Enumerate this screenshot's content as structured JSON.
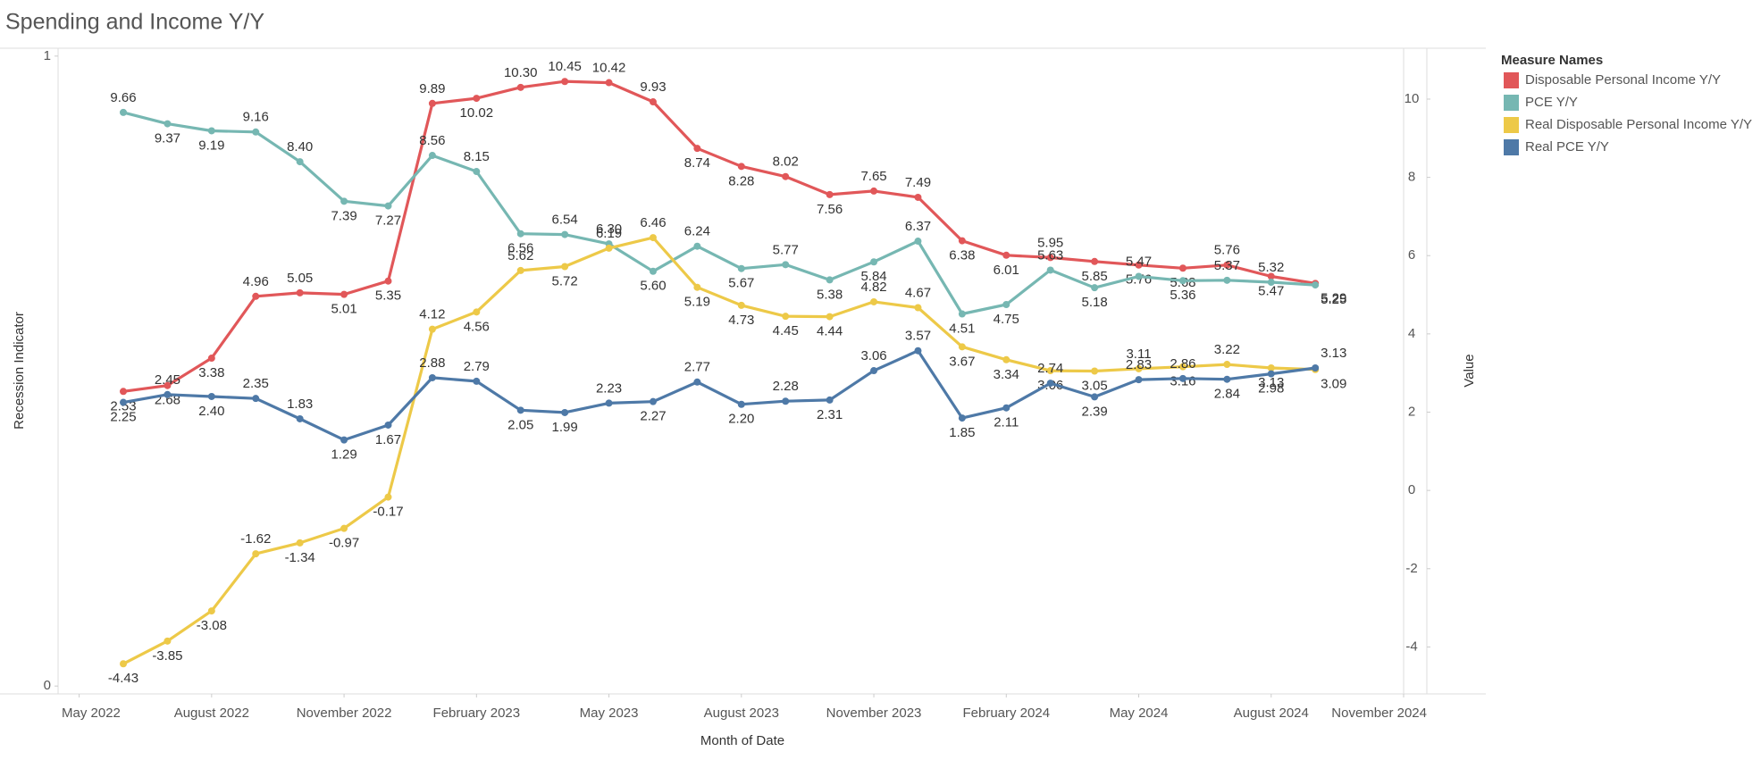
{
  "chart_data": {
    "type": "line",
    "title": "Spending and Income Y/Y",
    "xlabel": "Month of Date",
    "ylabel": "Recession Indicator",
    "y2label": "Value",
    "legend_title": "Measure Names",
    "legend": "right",
    "x": [
      "2022-06",
      "2022-07",
      "2022-08",
      "2022-09",
      "2022-10",
      "2022-11",
      "2022-12",
      "2023-01",
      "2023-02",
      "2023-03",
      "2023-04",
      "2023-05",
      "2023-06",
      "2023-07",
      "2023-08",
      "2023-09",
      "2023-10",
      "2023-11",
      "2023-12",
      "2024-01",
      "2024-02",
      "2024-03",
      "2024-04",
      "2024-05",
      "2024-06",
      "2024-07",
      "2024-08",
      "2024-09"
    ],
    "xlim": [
      "2022-05",
      "2024-11"
    ],
    "xticks": [
      {
        "value": "2022-05",
        "label": "May 2022"
      },
      {
        "value": "2022-08",
        "label": "August 2022"
      },
      {
        "value": "2022-11",
        "label": "November 2022"
      },
      {
        "value": "2023-02",
        "label": "February 2023"
      },
      {
        "value": "2023-05",
        "label": "May 2023"
      },
      {
        "value": "2023-08",
        "label": "August 2023"
      },
      {
        "value": "2023-11",
        "label": "November 2023"
      },
      {
        "value": "2024-02",
        "label": "February 2024"
      },
      {
        "value": "2024-05",
        "label": "May 2024"
      },
      {
        "value": "2024-08",
        "label": "August 2024"
      },
      {
        "value": "2024-11",
        "label": "November 2024"
      }
    ],
    "ylim": [
      -0.0125,
      1.0125
    ],
    "yticks": [
      0,
      1
    ],
    "y2lim": [
      -5.2,
      11.3
    ],
    "y2ticks": [
      -4,
      -2,
      0,
      2,
      4,
      6,
      8,
      10
    ],
    "series": [
      {
        "name": "Disposable Personal Income Y/Y",
        "color": "#e15759",
        "axis": "y2",
        "values": [
          2.53,
          2.68,
          3.38,
          4.96,
          5.05,
          5.01,
          5.35,
          9.89,
          10.02,
          10.3,
          10.45,
          10.42,
          9.93,
          8.74,
          8.28,
          8.02,
          7.56,
          7.65,
          7.49,
          6.38,
          6.01,
          5.95,
          5.85,
          5.76,
          5.68,
          5.76,
          5.47,
          5.29
        ],
        "value_labels": [
          "2.53",
          "2.68",
          "3.38",
          "4.96",
          "5.05",
          "5.01",
          "5.35",
          "9.89",
          "10.02",
          "10.30",
          "10.45",
          "10.42",
          "9.93",
          "8.74",
          "8.28",
          "8.02",
          "7.56",
          "7.65",
          "7.49",
          "6.38",
          "6.01",
          "5.95",
          "5.85",
          "5.76",
          "5.68",
          "5.76",
          "5.47",
          "5.29"
        ]
      },
      {
        "name": "PCE Y/Y",
        "color": "#76b7b2",
        "axis": "y2",
        "values": [
          9.66,
          9.37,
          9.19,
          9.16,
          8.4,
          7.39,
          7.27,
          8.56,
          8.15,
          6.56,
          6.54,
          6.3,
          5.6,
          6.24,
          5.67,
          5.77,
          5.38,
          5.84,
          6.37,
          4.51,
          4.75,
          5.63,
          5.18,
          5.47,
          5.36,
          5.37,
          5.32,
          5.25
        ],
        "value_labels": [
          "9.66",
          "9.37",
          "9.19",
          "9.16",
          "8.40",
          "7.39",
          "7.27",
          "8.56",
          "8.15",
          "6.56",
          "6.54",
          "6.30",
          "5.60",
          "6.24",
          "5.67",
          "5.77",
          "5.38",
          "5.84",
          "6.37",
          "4.51",
          "4.75",
          "5.63",
          "5.18",
          "5.47",
          "5.36",
          "5.37",
          "5.32",
          "5.25"
        ]
      },
      {
        "name": "Real Disposable Personal Income Y/Y",
        "color": "#edc948",
        "axis": "y2",
        "values": [
          -4.43,
          -3.85,
          -3.08,
          -1.62,
          -1.34,
          -0.97,
          -0.17,
          4.12,
          4.56,
          5.62,
          5.72,
          6.19,
          6.46,
          5.19,
          4.73,
          4.45,
          4.44,
          4.82,
          4.67,
          3.67,
          3.34,
          3.06,
          3.05,
          3.11,
          3.16,
          3.22,
          3.13,
          3.09
        ],
        "value_labels": [
          "-4.43",
          "-3.85",
          "-3.08",
          "-1.62",
          "-1.34",
          "-0.97",
          "-0.17",
          "4.12",
          "4.56",
          "5.62",
          "5.72",
          "6.19",
          "6.46",
          "5.19",
          "4.73",
          "4.45",
          "4.44",
          "4.82",
          "4.67",
          "3.67",
          "3.34",
          "3.06",
          "3.05",
          "3.11",
          "3.16",
          "3.22",
          "3.13",
          "3.09"
        ]
      },
      {
        "name": "Real PCE Y/Y",
        "color": "#4e79a7",
        "axis": "y2",
        "values": [
          2.25,
          2.45,
          2.4,
          2.35,
          1.83,
          1.29,
          1.67,
          2.88,
          2.79,
          2.05,
          1.99,
          2.23,
          2.27,
          2.77,
          2.2,
          2.28,
          2.31,
          3.06,
          3.57,
          1.85,
          2.11,
          2.74,
          2.39,
          2.83,
          2.86,
          2.84,
          2.98,
          3.13
        ],
        "value_labels": [
          "2.25",
          "2.45",
          "2.40",
          "2.35",
          "1.83",
          "1.29",
          "1.67",
          "2.88",
          "2.79",
          "2.05",
          "1.99",
          "2.23",
          "2.27",
          "2.77",
          "2.20",
          "2.28",
          "2.31",
          "3.06",
          "3.57",
          "1.85",
          "2.11",
          "2.74",
          "2.39",
          "2.83",
          "2.86",
          "2.84",
          "2.98",
          "3.13"
        ]
      }
    ]
  }
}
